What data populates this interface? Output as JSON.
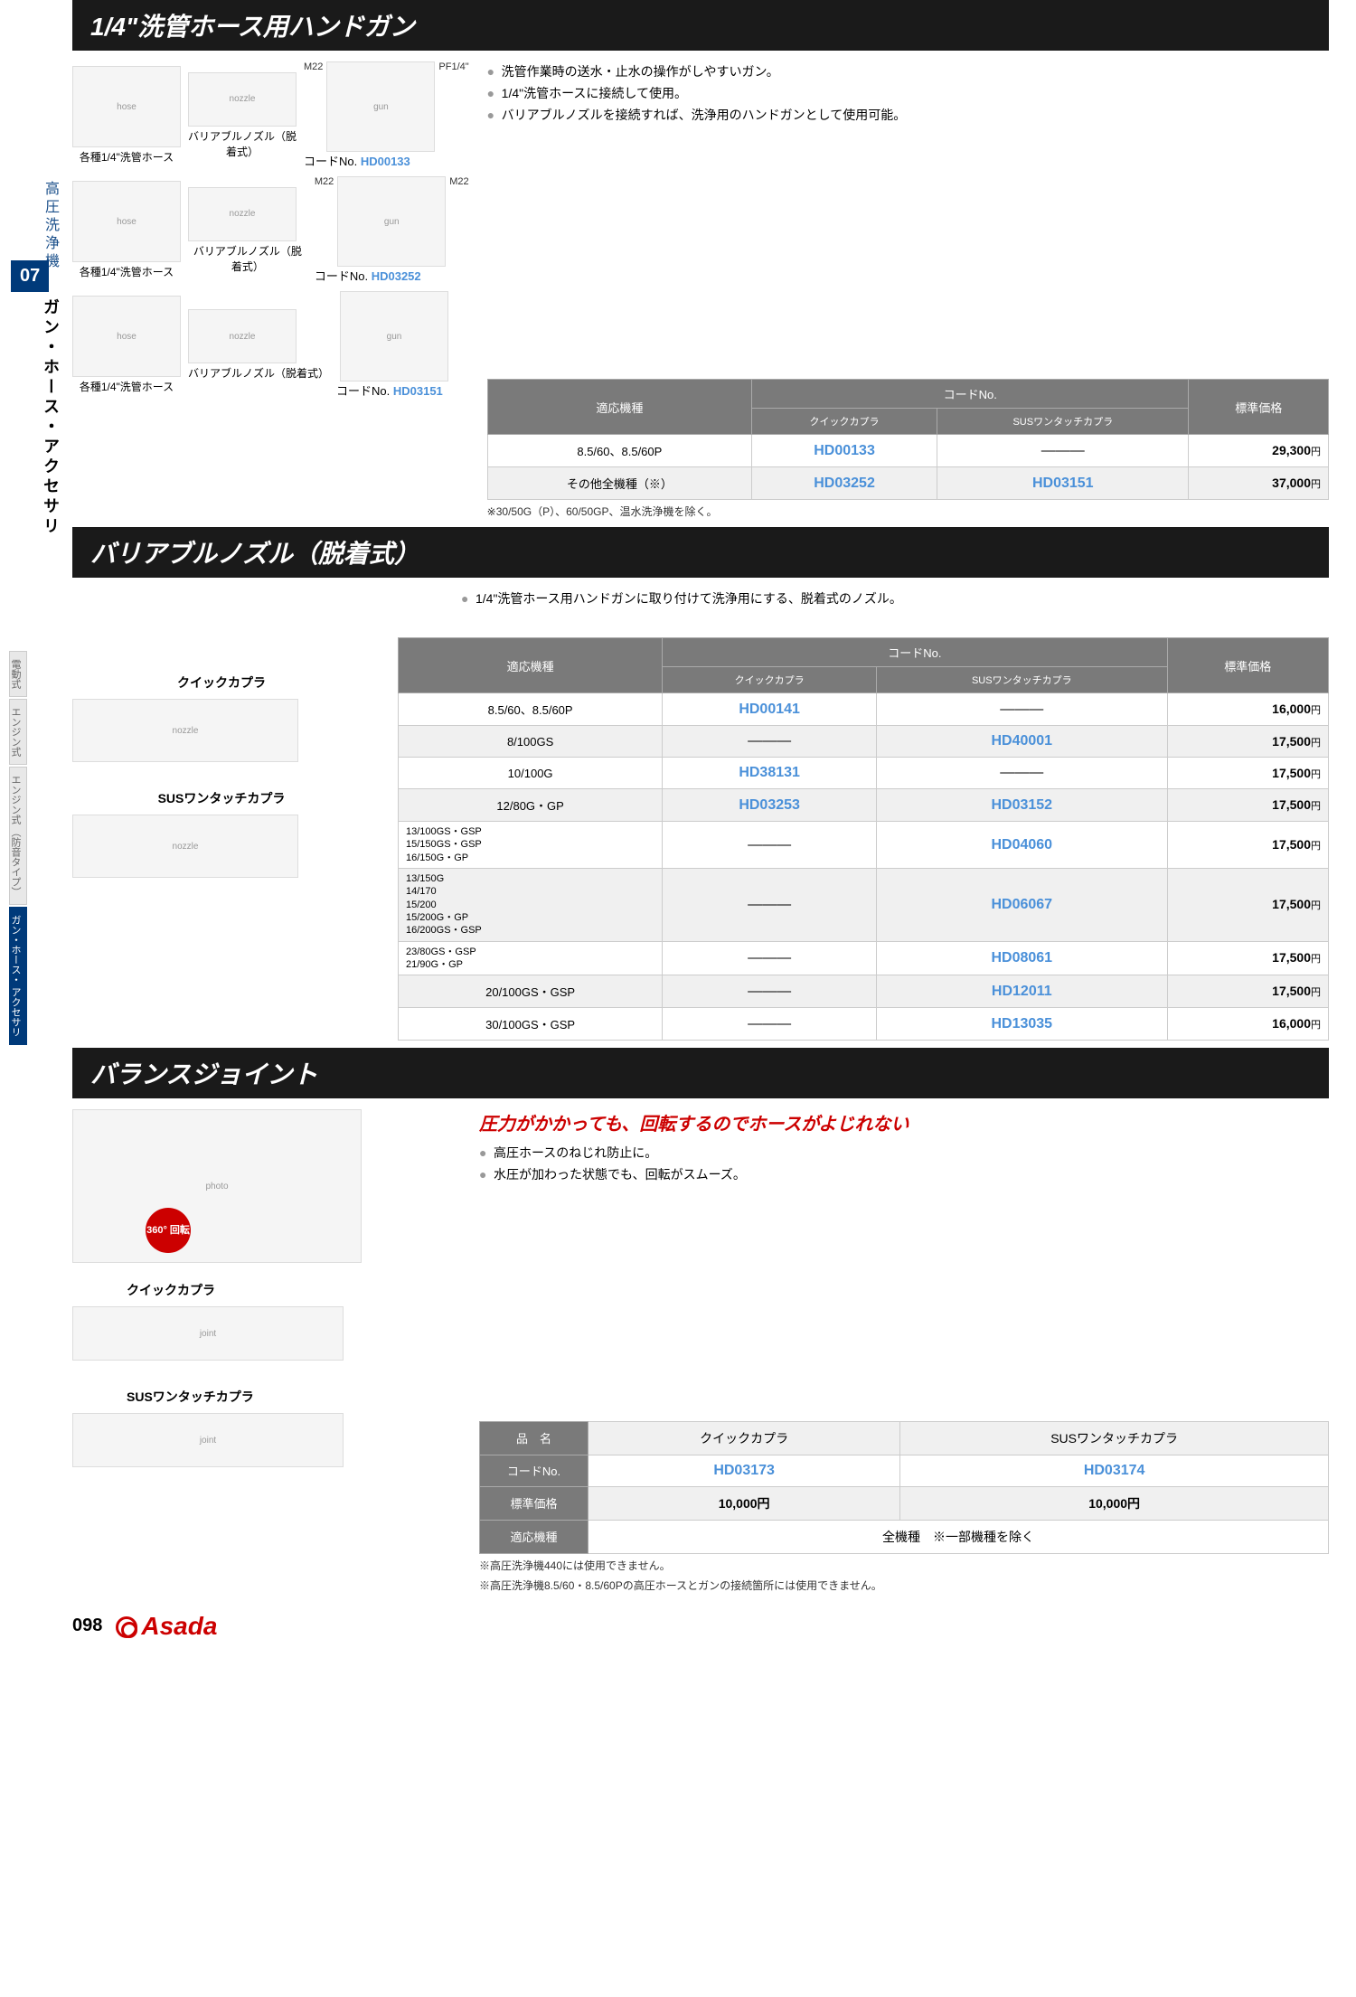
{
  "sidebar": {
    "category": "高圧洗浄機",
    "number": "07",
    "subcategory": "ガン・ホース・アクセサリ",
    "tags": [
      "電動式",
      "エンジン式",
      "エンジン式\n（防音タイプ）",
      "ガン・ホース・\nアクセサリ"
    ]
  },
  "section1": {
    "title": "1/4\"洗管ホース用ハンドガン",
    "bullets": [
      "洗管作業時の送水・止水の操作がしやすいガン。",
      "1/4\"洗管ホースに接続して使用。",
      "バリアブルノズルを接続すれば、洗浄用のハンドガンとして使用可能。"
    ],
    "items": [
      {
        "hose": "各種1/4\"洗管ホース",
        "nozzle": "バリアブルノズル（脱着式）",
        "conn1": "M22",
        "conn2": "PF1/4\"",
        "codeLabel": "コードNo.",
        "code": "HD00133"
      },
      {
        "hose": "各種1/4\"洗管ホース",
        "nozzle": "バリアブルノズル（脱着式）",
        "conn1": "M22",
        "conn2": "M22",
        "codeLabel": "コードNo.",
        "code": "HD03252"
      },
      {
        "hose": "各種1/4\"洗管ホース",
        "nozzle": "バリアブルノズル（脱着式）",
        "conn1": "",
        "conn2": "",
        "codeLabel": "コードNo.",
        "code": "HD03151"
      }
    ],
    "table": {
      "headers": {
        "model": "適応機種",
        "codeGroup": "コードNo.",
        "quick": "クイックカプラ",
        "sus": "SUSワンタッチカプラ",
        "price": "標準価格"
      },
      "rows": [
        {
          "model": "8.5/60、8.5/60P",
          "quick": "HD00133",
          "sus": "―――",
          "price": "29,300",
          "alt": false
        },
        {
          "model": "その他全機種（※）",
          "quick": "HD03252",
          "sus": "HD03151",
          "price": "37,000",
          "alt": true
        }
      ],
      "note": "※30/50G（P）、60/50GP、温水洗浄機を除く。"
    }
  },
  "section2": {
    "title": "バリアブルノズル（脱着式）",
    "bullets": [
      "1/4\"洗管ホース用ハンドガンに取り付けて洗浄用にする、脱着式のノズル。"
    ],
    "imgLabels": {
      "quick": "クイックカプラ",
      "sus": "SUSワンタッチカプラ"
    },
    "table": {
      "headers": {
        "model": "適応機種",
        "codeGroup": "コードNo.",
        "quick": "クイックカプラ",
        "sus": "SUSワンタッチカプラ",
        "price": "標準価格"
      },
      "rows": [
        {
          "model": "8.5/60、8.5/60P",
          "quick": "HD00141",
          "sus": "―――",
          "price": "16,000",
          "alt": false
        },
        {
          "model": "8/100GS",
          "quick": "―――",
          "sus": "HD40001",
          "price": "17,500",
          "alt": true
        },
        {
          "model": "10/100G",
          "quick": "HD38131",
          "sus": "―――",
          "price": "17,500",
          "alt": false
        },
        {
          "model": "12/80G・GP",
          "quick": "HD03253",
          "sus": "HD03152",
          "price": "17,500",
          "alt": true
        },
        {
          "model": "13/100GS・GSP\n15/150GS・GSP\n16/150G・GP",
          "quick": "―――",
          "sus": "HD04060",
          "price": "17,500",
          "alt": false,
          "multi": true
        },
        {
          "model": "13/150G\n14/170\n15/200\n15/200G・GP\n16/200GS・GSP",
          "quick": "―――",
          "sus": "HD06067",
          "price": "17,500",
          "alt": true,
          "multi": true
        },
        {
          "model": "23/80GS・GSP\n21/90G・GP",
          "quick": "―――",
          "sus": "HD08061",
          "price": "17,500",
          "alt": false,
          "multi": true
        },
        {
          "model": "20/100GS・GSP",
          "quick": "―――",
          "sus": "HD12011",
          "price": "17,500",
          "alt": true
        },
        {
          "model": "30/100GS・GSP",
          "quick": "―――",
          "sus": "HD13035",
          "price": "16,000",
          "alt": false
        }
      ]
    }
  },
  "section3": {
    "title": "バランスジョイント",
    "redHeadline": "圧力がかかっても、回転するのでホースがよじれない",
    "bullets": [
      "高圧ホースのねじれ防止に。",
      "水圧が加わった状態でも、回転がスムーズ。"
    ],
    "badge": "360°\n回転",
    "imgLabels": {
      "quick": "クイックカプラ",
      "sus": "SUSワンタッチカプラ"
    },
    "table": {
      "rows": [
        {
          "label": "品　名",
          "c1": "クイックカプラ",
          "c2": "SUSワンタッチカプラ",
          "code": false,
          "alt": true
        },
        {
          "label": "コードNo.",
          "c1": "HD03173",
          "c2": "HD03174",
          "code": true,
          "alt": false
        },
        {
          "label": "標準価格",
          "c1": "10,000円",
          "c2": "10,000円",
          "code": false,
          "alt": true,
          "price": true
        },
        {
          "label": "適応機種",
          "c1": "全機種　※一部機種を除く",
          "span": true,
          "alt": false
        }
      ],
      "notes": [
        "※高圧洗浄機440には使用できません。",
        "※高圧洗浄機8.5/60・8.5/60Pの高圧ホースとガンの接続箇所には使用できません。"
      ]
    }
  },
  "footer": {
    "page": "098",
    "brand": "Asada"
  }
}
